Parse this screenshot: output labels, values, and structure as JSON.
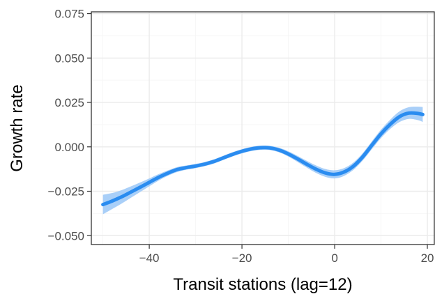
{
  "chart_data": {
    "type": "line",
    "title": "",
    "xlabel": "Transit stations (lag=12)",
    "ylabel": "Growth rate",
    "xlim": [
      -52.5,
      21.5
    ],
    "ylim": [
      -0.055,
      0.076
    ],
    "x_ticks": [
      -40,
      -20,
      0,
      20
    ],
    "x_tick_labels": [
      "−40",
      "−20",
      "0",
      "20"
    ],
    "y_ticks": [
      -0.05,
      -0.025,
      0.0,
      0.025,
      0.05,
      0.075
    ],
    "y_tick_labels": [
      "−0.050",
      "−0.025",
      "0.000",
      "0.025",
      "0.050",
      "0.075"
    ],
    "grid": true,
    "theme": "bw",
    "line_color": "#2a8cf0",
    "ribbon_color": "#a9cff8",
    "series": [
      {
        "x": [
          -50,
          -48,
          -46,
          -44,
          -42,
          -40,
          -38,
          -36,
          -34,
          -32,
          -30,
          -28,
          -26,
          -24,
          -22,
          -20,
          -18,
          -16,
          -14,
          -12,
          -10,
          -8,
          -6,
          -4,
          -2,
          0,
          2,
          4,
          6,
          8,
          10,
          12,
          14,
          16,
          18,
          19
        ],
        "y": [
          -0.0325,
          -0.0305,
          -0.0282,
          -0.0255,
          -0.0228,
          -0.02,
          -0.0172,
          -0.0148,
          -0.0128,
          -0.0117,
          -0.0108,
          -0.0097,
          -0.0082,
          -0.0062,
          -0.0042,
          -0.0025,
          -0.0012,
          -0.0005,
          -0.0006,
          -0.0018,
          -0.004,
          -0.0068,
          -0.0098,
          -0.0126,
          -0.0147,
          -0.0155,
          -0.0142,
          -0.011,
          -0.0058,
          0.0008,
          0.0073,
          0.0127,
          0.017,
          0.019,
          0.0188,
          0.0182
        ],
        "lower": [
          -0.038,
          -0.035,
          -0.032,
          -0.0287,
          -0.0255,
          -0.0222,
          -0.019,
          -0.0163,
          -0.0142,
          -0.0129,
          -0.012,
          -0.0109,
          -0.0094,
          -0.0074,
          -0.0054,
          -0.0037,
          -0.0024,
          -0.0017,
          -0.0018,
          -0.0031,
          -0.0055,
          -0.0085,
          -0.0117,
          -0.0147,
          -0.0169,
          -0.0178,
          -0.0164,
          -0.0131,
          -0.0079,
          -0.0014,
          0.0049,
          0.0101,
          0.014,
          0.0157,
          0.015,
          0.014
        ],
        "upper": [
          -0.027,
          -0.026,
          -0.0244,
          -0.0223,
          -0.0201,
          -0.0178,
          -0.0154,
          -0.0133,
          -0.0114,
          -0.0105,
          -0.0096,
          -0.0085,
          -0.007,
          -0.005,
          -0.003,
          -0.0013,
          0.0,
          0.0007,
          0.0006,
          -0.0005,
          -0.0025,
          -0.0051,
          -0.0079,
          -0.0105,
          -0.0125,
          -0.0132,
          -0.012,
          -0.0089,
          -0.0037,
          0.003,
          0.0097,
          0.0153,
          0.02,
          0.0223,
          0.0226,
          0.0224
        ]
      }
    ]
  }
}
